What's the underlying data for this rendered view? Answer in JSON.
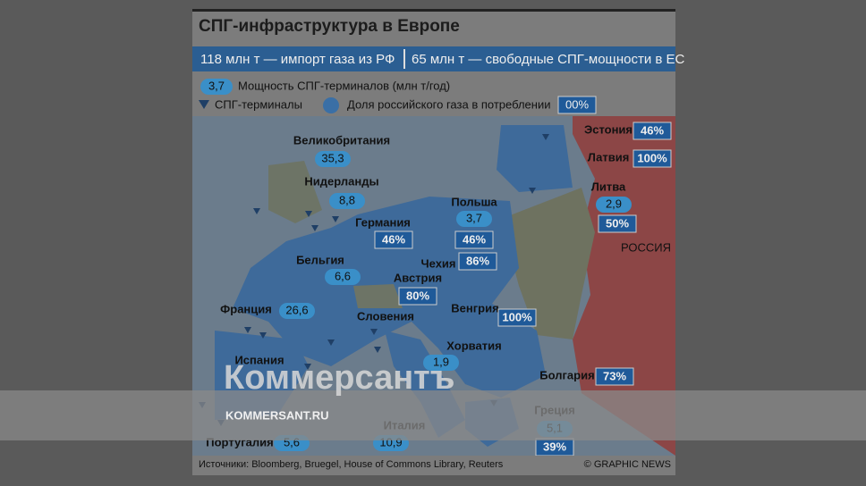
{
  "header": {
    "title": "СПГ-инфраструктура в Европе",
    "banner": [
      "118 млн т — импорт газа из РФ",
      "65 млн т — свободные СПГ-мощности в ЕС"
    ]
  },
  "legend": {
    "capacity_sample": "3,7",
    "capacity_label": "Мощность СПГ-терминалов (млн т/год)",
    "terminals_label": "СПГ-терминалы",
    "share_label": "Доля российского газа в потреблении",
    "share_sample": "00%"
  },
  "countries": [
    {
      "name": "Великобритания",
      "capacity": "35,3"
    },
    {
      "name": "Нидерланды",
      "capacity": "8,8"
    },
    {
      "name": "Германия",
      "share": "46%"
    },
    {
      "name": "Польша",
      "capacity": "3,7",
      "share": "46%"
    },
    {
      "name": "Бельгия",
      "capacity": "6,6"
    },
    {
      "name": "Чехия",
      "share": "86%"
    },
    {
      "name": "Австрия",
      "share": "80%"
    },
    {
      "name": "Франция",
      "capacity": "26,6"
    },
    {
      "name": "Словения"
    },
    {
      "name": "Венгрия",
      "share": "100%"
    },
    {
      "name": "Хорватия",
      "capacity": "1,9"
    },
    {
      "name": "Испания"
    },
    {
      "name": "Италия",
      "capacity": "10,9"
    },
    {
      "name": "Португалия",
      "capacity": "5,6"
    },
    {
      "name": "Греция",
      "capacity": "5,1",
      "share": "39%"
    },
    {
      "name": "Болгария",
      "share": "73%"
    },
    {
      "name": "Эстония",
      "share": "46%"
    },
    {
      "name": "Латвия",
      "share": "100%"
    },
    {
      "name": "Литва",
      "capacity": "2,9",
      "share": "50%"
    }
  ],
  "russia": "РОССИЯ",
  "footer": {
    "sources": "Источники: Bloomberg, Bruegel, House of Commons Library, Reuters",
    "credit": "© GRAPHIC NEWS"
  },
  "watermark": {
    "brand": "Коммерсантъ",
    "url": "KOMMERSANT.RU"
  }
}
